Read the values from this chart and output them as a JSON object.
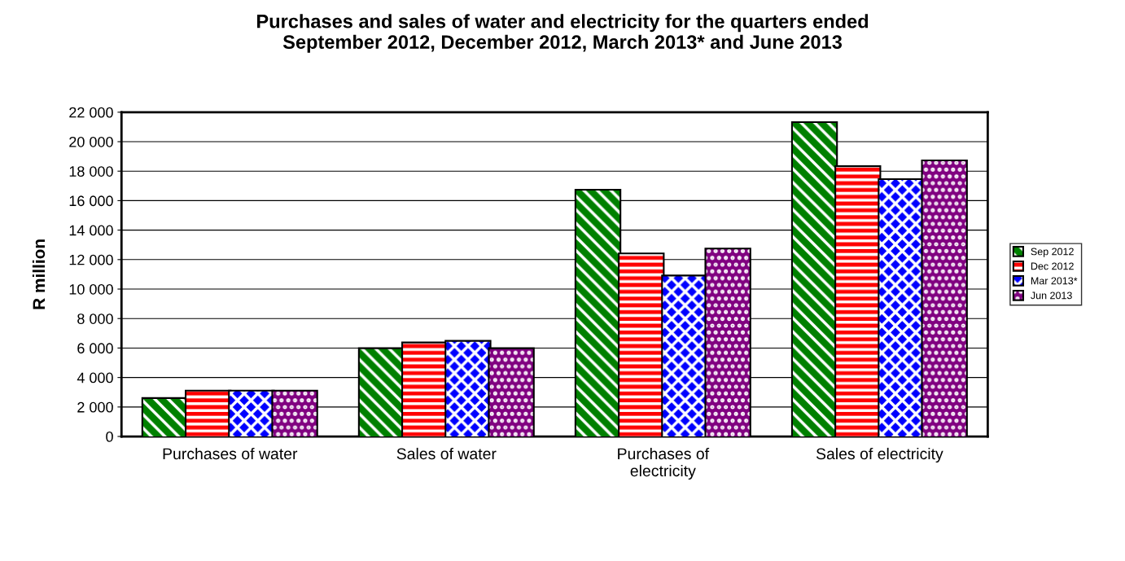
{
  "chart_data": {
    "type": "bar",
    "title": "Purchases and sales of water and electricity for the quarters ended\nSeptember 2012, December 2012, March 2013* and June 2013",
    "ylabel": "R million",
    "categories": [
      "Purchases of water",
      "Sales of water",
      "Purchases of\nelectricity",
      "Sales of electricity"
    ],
    "series": [
      {
        "name": "Sep 2012",
        "color": "#008000",
        "values": [
          2550,
          5930,
          16680,
          21270
        ]
      },
      {
        "name": "Dec 2012",
        "color": "#ff0000",
        "values": [
          3050,
          6320,
          12360,
          18280
        ]
      },
      {
        "name": "Mar 2013*",
        "color": "#0000ff",
        "values": [
          3050,
          6430,
          10860,
          17400
        ]
      },
      {
        "name": "Jun 2013",
        "color": "#800080",
        "values": [
          3050,
          5930,
          12690,
          18670
        ]
      }
    ],
    "ylim": [
      0,
      22000
    ],
    "yticks": [
      {
        "value": 0,
        "label": "0"
      },
      {
        "value": 2000,
        "label": "2 000"
      },
      {
        "value": 4000,
        "label": "4 000"
      },
      {
        "value": 6000,
        "label": "6 000"
      },
      {
        "value": 8000,
        "label": "8 000"
      },
      {
        "value": 10000,
        "label": "10 000"
      },
      {
        "value": 12000,
        "label": "12 000"
      },
      {
        "value": 14000,
        "label": "14 000"
      },
      {
        "value": 16000,
        "label": "16 000"
      },
      {
        "value": 18000,
        "label": "18 000"
      },
      {
        "value": 20000,
        "label": "20 000"
      },
      {
        "value": 22000,
        "label": "22 000"
      }
    ],
    "grid": "y",
    "legend": "right"
  }
}
